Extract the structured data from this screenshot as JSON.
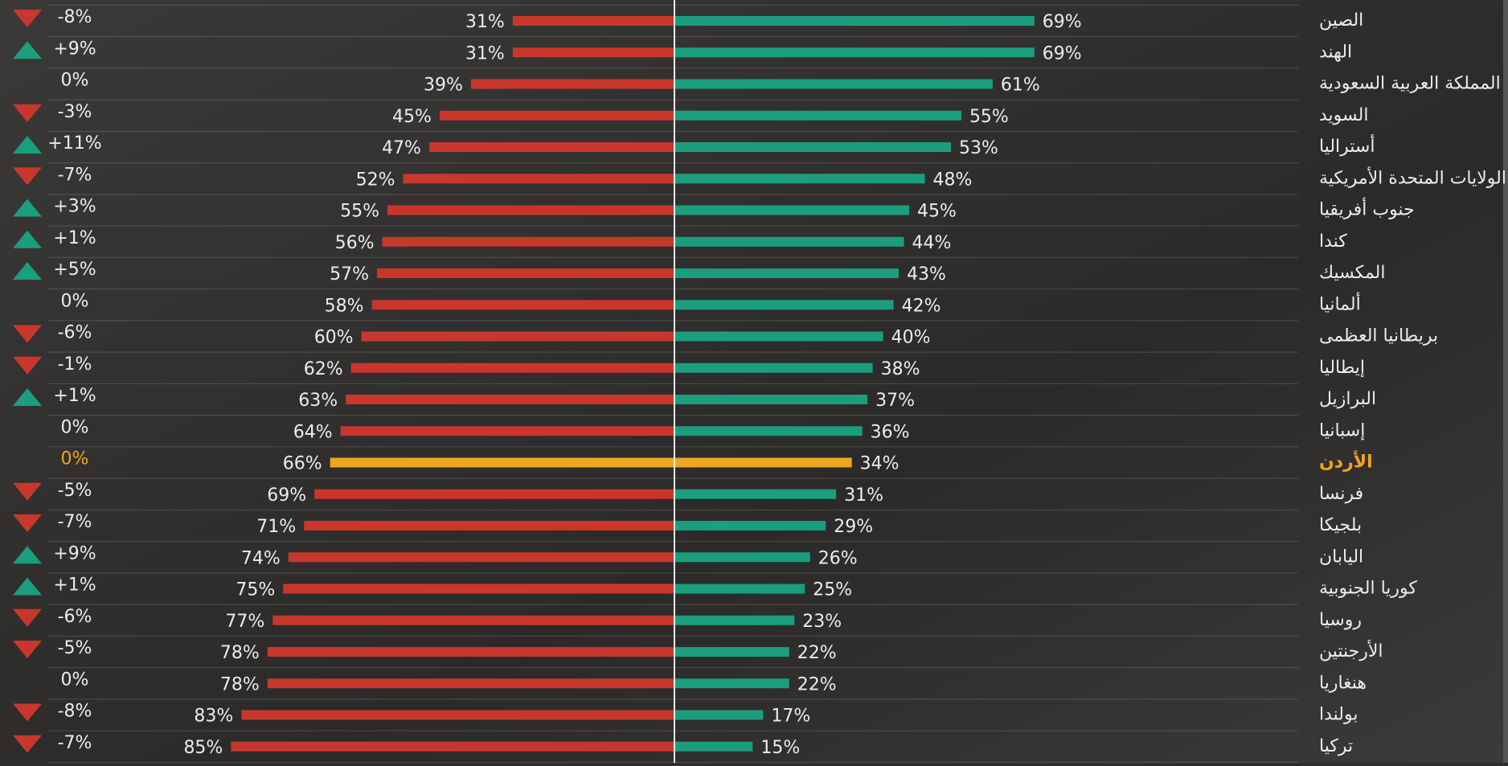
{
  "chart_data": {
    "type": "diverging_bar",
    "categories": [
      "الصين",
      "الهند",
      "المملكة العربية السعودية",
      "السويد",
      "أستراليا",
      "الولايات المتحدة الأمريكية",
      "جنوب أفريقيا",
      "كندا",
      "المكسيك",
      "ألمانيا",
      "بريطانيا العظمى",
      "إيطاليا",
      "البرازيل",
      "إسبانيا",
      "الأردن",
      "فرنسا",
      "بلجيكا",
      "اليابان",
      "كوريا الجنوبية",
      "روسيا",
      "الأرجنتين",
      "هنغاريا",
      "بولندا",
      "تركيا"
    ],
    "series": [
      {
        "color": "#c9372c",
        "values": [
          31,
          31,
          39,
          45,
          47,
          52,
          55,
          56,
          57,
          58,
          60,
          62,
          63,
          64,
          66,
          69,
          71,
          74,
          75,
          77,
          78,
          78,
          83,
          85
        ],
        "value_labels": [
          "31%",
          "31%",
          "39%",
          "45%",
          "47%",
          "52%",
          "55%",
          "56%",
          "57%",
          "58%",
          "60%",
          "62%",
          "63%",
          "64%",
          "66%",
          "69%",
          "71%",
          "74%",
          "75%",
          "77%",
          "78%",
          "78%",
          "83%",
          "85%"
        ]
      },
      {
        "color": "#1a9e7e",
        "values": [
          69,
          69,
          61,
          55,
          53,
          48,
          45,
          44,
          43,
          42,
          40,
          38,
          37,
          36,
          34,
          31,
          29,
          26,
          25,
          23,
          22,
          22,
          17,
          15
        ],
        "value_labels": [
          "69%",
          "69%",
          "61%",
          "55%",
          "53%",
          "48%",
          "45%",
          "44%",
          "43%",
          "42%",
          "40%",
          "38%",
          "37%",
          "36%",
          "34%",
          "31%",
          "29%",
          "26%",
          "25%",
          "23%",
          "22%",
          "22%",
          "17%",
          "15%"
        ]
      }
    ],
    "changes": {
      "up_color": "#1a9e7e",
      "down_color": "#c9372c",
      "values": [
        -8,
        9,
        0,
        -3,
        11,
        -7,
        3,
        1,
        5,
        0,
        -6,
        -1,
        1,
        0,
        0,
        -5,
        -7,
        9,
        1,
        -6,
        -5,
        0,
        -8,
        -7
      ],
      "value_labels": [
        "-8%",
        "+9%",
        "0%",
        "-3%",
        "+11%",
        "-7%",
        "+3%",
        "+1%",
        "+5%",
        "0%",
        "-6%",
        "-1%",
        "+1%",
        "0%",
        "0%",
        "-5%",
        "-7%",
        "+9%",
        "+1%",
        "-6%",
        "-5%",
        "0%",
        "-8%",
        "-7%"
      ]
    },
    "highlight_index": 14,
    "highlight_color": "#f0a51e"
  }
}
